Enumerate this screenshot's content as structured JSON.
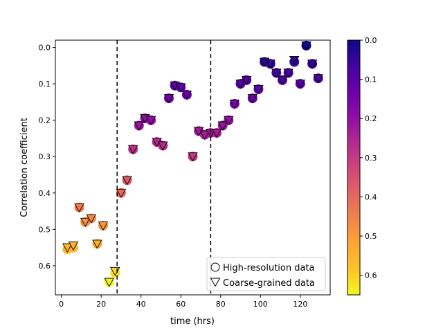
{
  "chart_data": {
    "type": "scatter",
    "title": "",
    "xlabel": "time (hrs)",
    "ylabel": "Correlation coefficient",
    "xlim": [
      -3,
      135
    ],
    "ylim": [
      0.68,
      -0.02
    ],
    "y_inverted": true,
    "xticks": [
      0,
      20,
      40,
      60,
      80,
      100,
      120
    ],
    "yticks": [
      0.0,
      0.1,
      0.2,
      0.3,
      0.4,
      0.5,
      0.6
    ],
    "ytick_labels": [
      "0.0",
      "0.1",
      "0.2",
      "0.3",
      "0.4",
      "0.5",
      "0.6"
    ],
    "grid": false,
    "vlines": [
      28,
      75
    ],
    "colormap": "plasma",
    "colorbar": {
      "range": [
        0.0,
        0.65
      ],
      "inverted": true,
      "ticks": [
        0.0,
        0.1,
        0.2,
        0.3,
        0.4,
        0.5,
        0.6
      ],
      "tick_labels": [
        "0.0",
        "0.1",
        "0.2",
        "0.3",
        "0.4",
        "0.5",
        "0.6"
      ]
    },
    "legend": {
      "placement": "lower right",
      "entries": [
        {
          "marker": "circle",
          "label": "High-resolution data"
        },
        {
          "marker": "triangle-down",
          "label": "Coarse-grained data"
        }
      ]
    },
    "series": [
      {
        "marker": "circle",
        "x": [
          3,
          6,
          9,
          12,
          15,
          18,
          21,
          24,
          27,
          30,
          33,
          36,
          39,
          42,
          45,
          48,
          51,
          54,
          57,
          60,
          63,
          66,
          69,
          72,
          75,
          78,
          81,
          84,
          87,
          90,
          93,
          96,
          99,
          102,
          105,
          108,
          111,
          114,
          117,
          120,
          123,
          126,
          129
        ],
        "y": [
          0.555,
          0.55,
          0.44,
          0.48,
          0.47,
          0.54,
          0.49,
          0.645,
          0.62,
          0.4,
          0.365,
          0.28,
          0.215,
          0.195,
          0.2,
          0.26,
          0.27,
          0.14,
          0.105,
          0.11,
          0.13,
          0.3,
          0.23,
          0.24,
          0.235,
          0.235,
          0.215,
          0.2,
          0.155,
          0.1,
          0.09,
          0.14,
          0.115,
          0.04,
          0.045,
          0.07,
          0.09,
          0.07,
          0.04,
          0.1,
          -0.005,
          0.045,
          0.085
        ]
      },
      {
        "marker": "triangle-down",
        "x": [
          3,
          6,
          9,
          12,
          15,
          18,
          21,
          24,
          27,
          30,
          33,
          36,
          39,
          42,
          45,
          48,
          51,
          54,
          57,
          60,
          63,
          66,
          69,
          72,
          75,
          78,
          81,
          84,
          87,
          90,
          93,
          96,
          99,
          102,
          105,
          108,
          111,
          114,
          117,
          120,
          123,
          126,
          129
        ],
        "y": [
          0.55,
          0.545,
          0.44,
          0.48,
          0.47,
          0.54,
          0.49,
          0.645,
          0.615,
          0.4,
          0.365,
          0.28,
          0.215,
          0.195,
          0.2,
          0.26,
          0.27,
          0.14,
          0.105,
          0.11,
          0.13,
          0.3,
          0.23,
          0.24,
          0.235,
          0.235,
          0.215,
          0.2,
          0.155,
          0.1,
          0.09,
          0.14,
          0.115,
          0.04,
          0.045,
          0.07,
          0.09,
          0.07,
          0.035,
          0.1,
          -0.005,
          0.045,
          0.085
        ]
      }
    ]
  }
}
